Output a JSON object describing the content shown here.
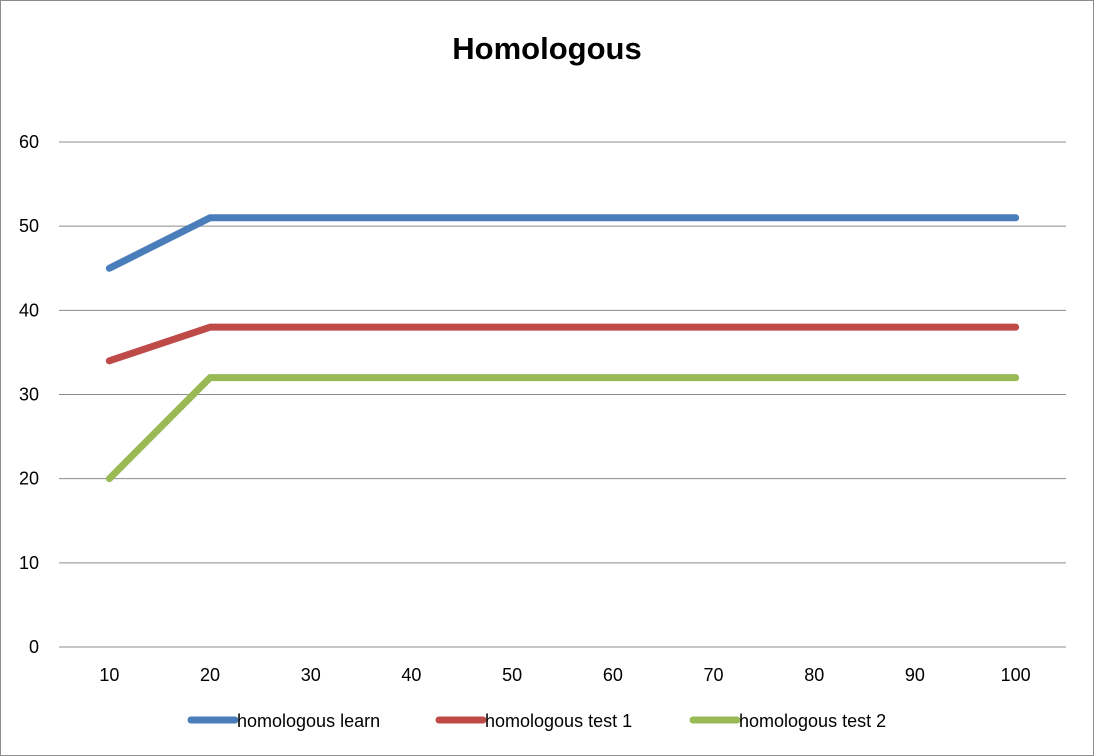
{
  "chart_data": {
    "type": "line",
    "title": "Homologous",
    "xlabel": "",
    "ylabel": "",
    "categories": [
      "10",
      "20",
      "30",
      "40",
      "50",
      "60",
      "70",
      "80",
      "90",
      "100"
    ],
    "y_ticks": [
      "0",
      "10",
      "20",
      "30",
      "40",
      "50",
      "60"
    ],
    "ylim": [
      0,
      60
    ],
    "grid": true,
    "legend_position": "bottom",
    "series": [
      {
        "name": "homologous learn",
        "color": "#4a7ebb",
        "values": [
          45,
          51,
          51,
          51,
          51,
          51,
          51,
          51,
          51,
          51
        ]
      },
      {
        "name": "homologous test 1",
        "color": "#be4b48",
        "values": [
          34,
          38,
          38,
          38,
          38,
          38,
          38,
          38,
          38,
          38
        ]
      },
      {
        "name": "homologous test 2",
        "color": "#98b954",
        "values": [
          20,
          32,
          32,
          32,
          32,
          32,
          32,
          32,
          32,
          32
        ]
      }
    ]
  }
}
